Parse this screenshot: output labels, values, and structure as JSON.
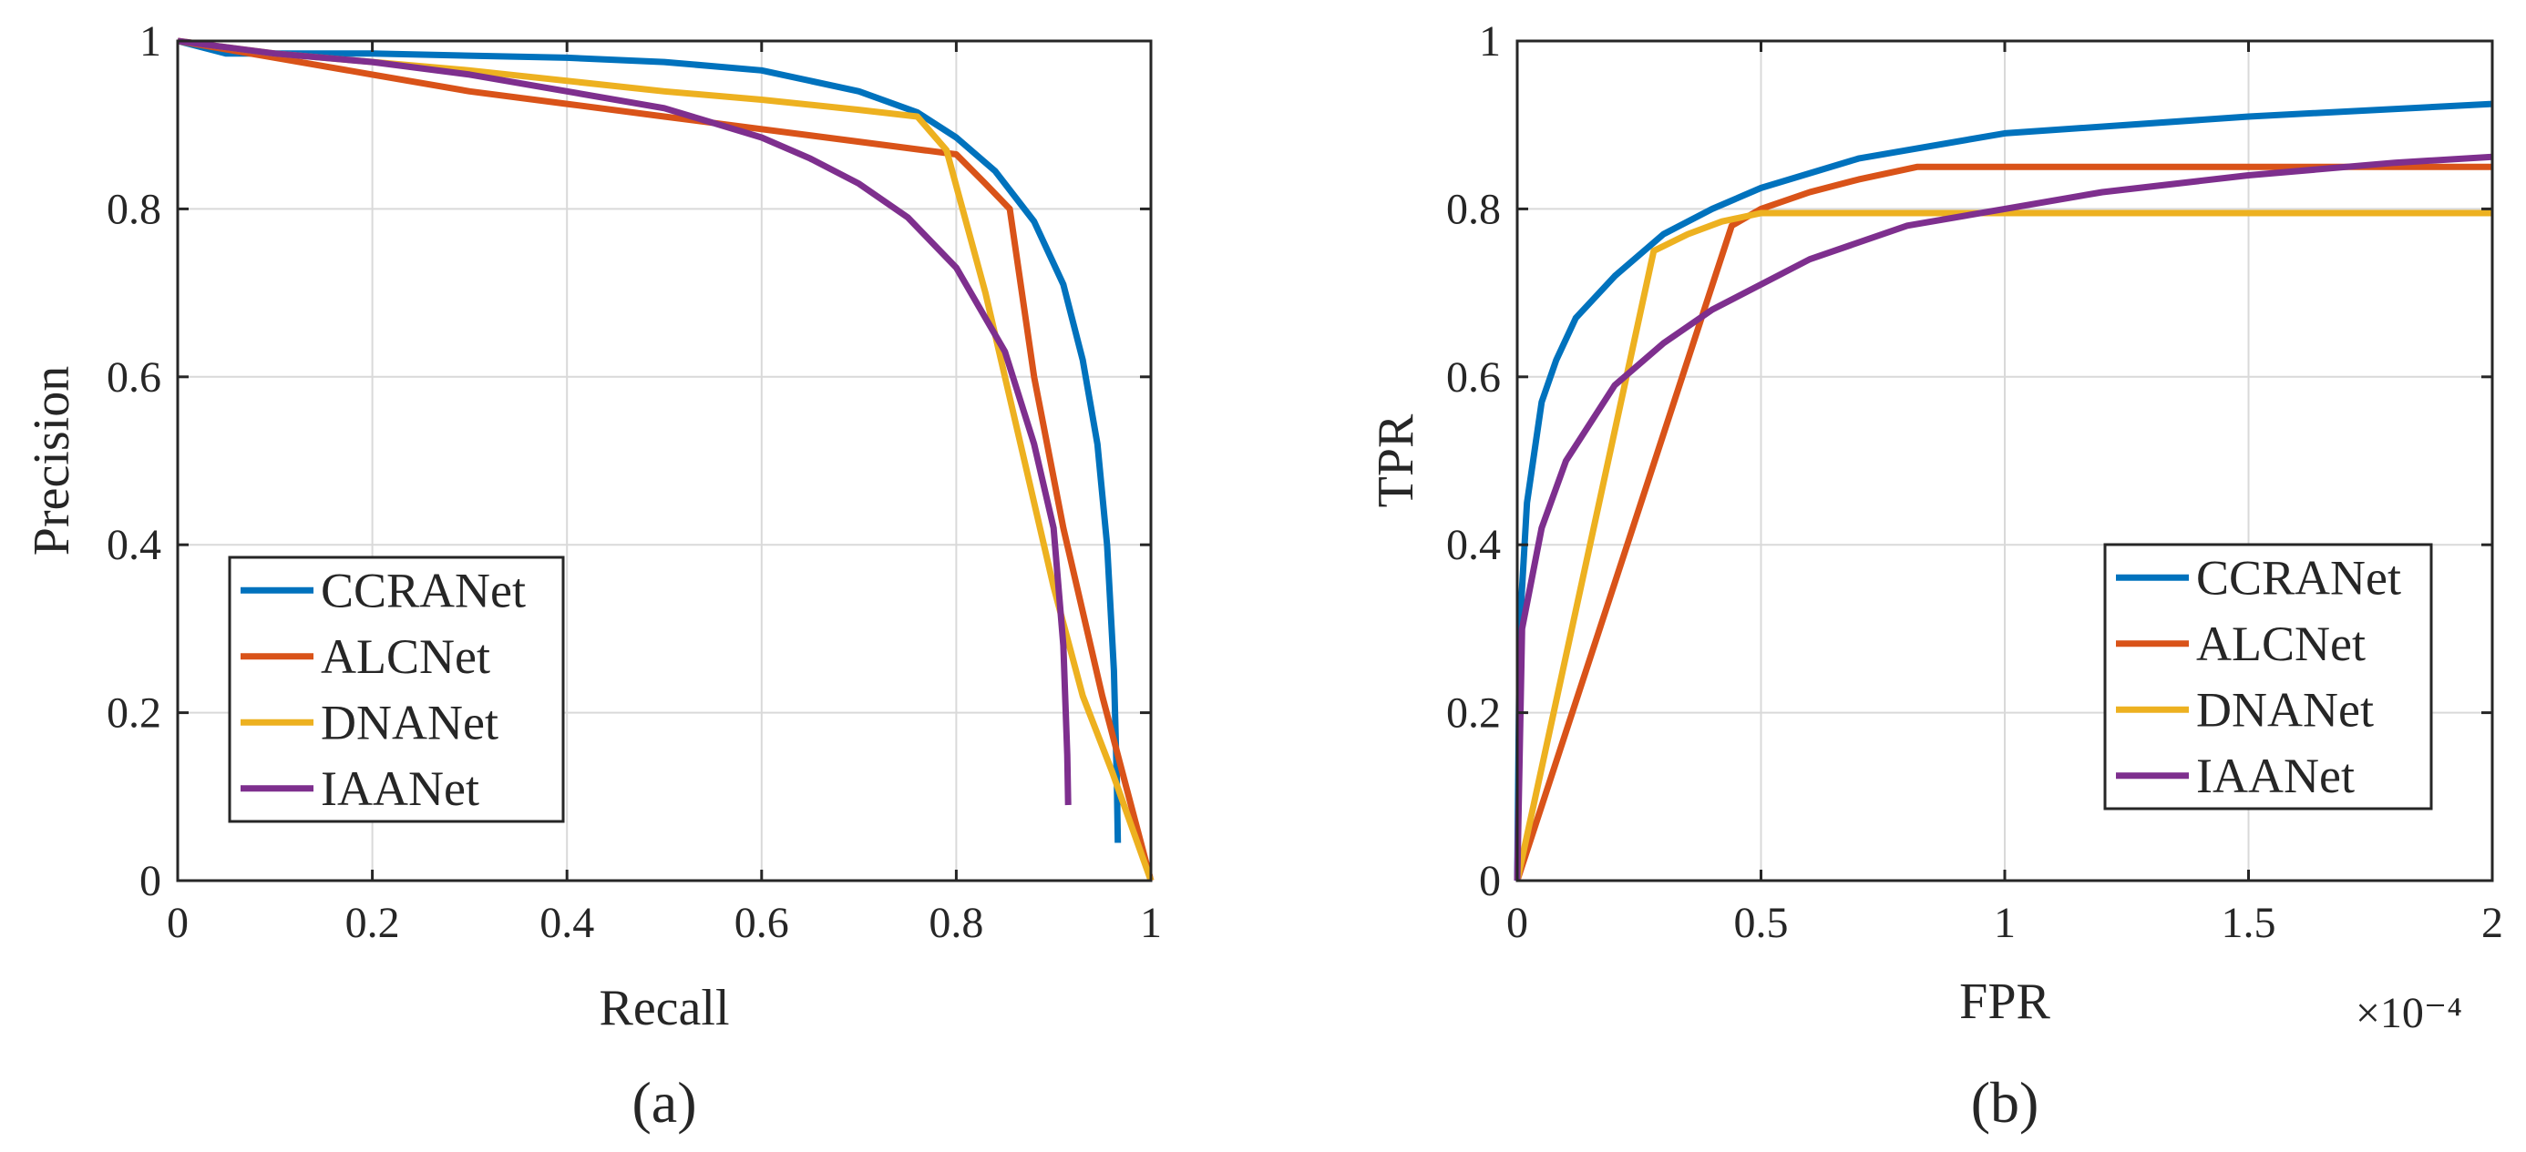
{
  "chart_data": [
    {
      "type": "line",
      "panel": "(a)",
      "xlabel": "Recall",
      "ylabel": "Precision",
      "xlim": [
        0,
        1
      ],
      "ylim": [
        0,
        1
      ],
      "xticks": [
        0,
        0.2,
        0.4,
        0.6,
        0.8,
        1
      ],
      "yticks": [
        0,
        0.2,
        0.4,
        0.6,
        0.8,
        1
      ],
      "xtick_labels": [
        "0",
        "0.2",
        "0.4",
        "0.6",
        "0.8",
        "1"
      ],
      "ytick_labels": [
        "0",
        "0.2",
        "0.4",
        "0.6",
        "0.8",
        "1"
      ],
      "exponent_label": "",
      "legend_position": "lower-left",
      "grid": true,
      "series": [
        {
          "name": "CCRANet",
          "color": "#0072BD",
          "points": [
            [
              0,
              1
            ],
            [
              0.05,
              0.985
            ],
            [
              0.2,
              0.985
            ],
            [
              0.4,
              0.98
            ],
            [
              0.5,
              0.975
            ],
            [
              0.6,
              0.965
            ],
            [
              0.7,
              0.94
            ],
            [
              0.76,
              0.915
            ],
            [
              0.8,
              0.885
            ],
            [
              0.84,
              0.845
            ],
            [
              0.88,
              0.785
            ],
            [
              0.91,
              0.71
            ],
            [
              0.93,
              0.62
            ],
            [
              0.945,
              0.52
            ],
            [
              0.955,
              0.4
            ],
            [
              0.962,
              0.25
            ],
            [
              0.965,
              0.12
            ],
            [
              0.966,
              0.045
            ]
          ]
        },
        {
          "name": "ALCNet",
          "color": "#D95319",
          "points": [
            [
              0,
              1
            ],
            [
              0.1,
              0.98
            ],
            [
              0.2,
              0.96
            ],
            [
              0.3,
              0.94
            ],
            [
              0.4,
              0.925
            ],
            [
              0.5,
              0.91
            ],
            [
              0.6,
              0.895
            ],
            [
              0.7,
              0.88
            ],
            [
              0.8,
              0.865
            ],
            [
              0.83,
              0.83
            ],
            [
              0.855,
              0.8
            ],
            [
              0.88,
              0.6
            ],
            [
              0.91,
              0.42
            ],
            [
              0.95,
              0.22
            ],
            [
              1,
              0
            ]
          ]
        },
        {
          "name": "DNANet",
          "color": "#EDB120",
          "points": [
            [
              0,
              1
            ],
            [
              0.1,
              0.985
            ],
            [
              0.3,
              0.965
            ],
            [
              0.5,
              0.94
            ],
            [
              0.6,
              0.93
            ],
            [
              0.7,
              0.918
            ],
            [
              0.76,
              0.91
            ],
            [
              0.79,
              0.87
            ],
            [
              0.83,
              0.7
            ],
            [
              0.87,
              0.5
            ],
            [
              0.9,
              0.35
            ],
            [
              0.93,
              0.22
            ],
            [
              0.96,
              0.13
            ],
            [
              1,
              0
            ]
          ]
        },
        {
          "name": "IAANet",
          "color": "#7E2F8E",
          "points": [
            [
              0,
              1
            ],
            [
              0.1,
              0.985
            ],
            [
              0.2,
              0.975
            ],
            [
              0.3,
              0.96
            ],
            [
              0.4,
              0.94
            ],
            [
              0.5,
              0.92
            ],
            [
              0.6,
              0.885
            ],
            [
              0.65,
              0.86
            ],
            [
              0.7,
              0.83
            ],
            [
              0.75,
              0.79
            ],
            [
              0.8,
              0.73
            ],
            [
              0.85,
              0.63
            ],
            [
              0.88,
              0.52
            ],
            [
              0.9,
              0.42
            ],
            [
              0.91,
              0.28
            ],
            [
              0.914,
              0.15
            ],
            [
              0.915,
              0.09
            ]
          ]
        }
      ]
    },
    {
      "type": "line",
      "panel": "(b)",
      "xlabel": "FPR",
      "ylabel": "TPR",
      "xlim": [
        0,
        2
      ],
      "ylim": [
        0,
        1
      ],
      "xticks": [
        0,
        0.5,
        1,
        1.5,
        2
      ],
      "yticks": [
        0,
        0.2,
        0.4,
        0.6,
        0.8,
        1
      ],
      "xtick_labels": [
        "0",
        "0.5",
        "1",
        "1.5",
        "2"
      ],
      "ytick_labels": [
        "0",
        "0.2",
        "0.4",
        "0.6",
        "0.8",
        "1"
      ],
      "exponent_label": "×10⁻⁴",
      "legend_position": "lower-right",
      "grid": true,
      "series": [
        {
          "name": "CCRANet",
          "color": "#0072BD",
          "points": [
            [
              0,
              0
            ],
            [
              0.005,
              0.3
            ],
            [
              0.02,
              0.45
            ],
            [
              0.05,
              0.57
            ],
            [
              0.08,
              0.62
            ],
            [
              0.12,
              0.67
            ],
            [
              0.2,
              0.72
            ],
            [
              0.3,
              0.77
            ],
            [
              0.4,
              0.8
            ],
            [
              0.5,
              0.825
            ],
            [
              0.7,
              0.86
            ],
            [
              1,
              0.89
            ],
            [
              1.5,
              0.91
            ],
            [
              2,
              0.925
            ]
          ]
        },
        {
          "name": "ALCNet",
          "color": "#D95319",
          "points": [
            [
              0,
              0
            ],
            [
              0.44,
              0.78
            ],
            [
              0.5,
              0.8
            ],
            [
              0.6,
              0.82
            ],
            [
              0.7,
              0.835
            ],
            [
              0.82,
              0.85
            ],
            [
              1,
              0.85
            ],
            [
              1.5,
              0.85
            ],
            [
              2,
              0.85
            ]
          ]
        },
        {
          "name": "DNANet",
          "color": "#EDB120",
          "points": [
            [
              0,
              0
            ],
            [
              0.28,
              0.75
            ],
            [
              0.35,
              0.77
            ],
            [
              0.42,
              0.785
            ],
            [
              0.5,
              0.795
            ],
            [
              1,
              0.795
            ],
            [
              1.5,
              0.795
            ],
            [
              2,
              0.795
            ]
          ]
        },
        {
          "name": "IAANet",
          "color": "#7E2F8E",
          "points": [
            [
              0,
              0
            ],
            [
              0.01,
              0.3
            ],
            [
              0.05,
              0.42
            ],
            [
              0.1,
              0.5
            ],
            [
              0.2,
              0.59
            ],
            [
              0.3,
              0.64
            ],
            [
              0.4,
              0.68
            ],
            [
              0.6,
              0.74
            ],
            [
              0.8,
              0.78
            ],
            [
              1,
              0.8
            ],
            [
              1.2,
              0.82
            ],
            [
              1.5,
              0.84
            ],
            [
              1.8,
              0.855
            ],
            [
              2,
              0.862
            ]
          ]
        }
      ]
    }
  ]
}
